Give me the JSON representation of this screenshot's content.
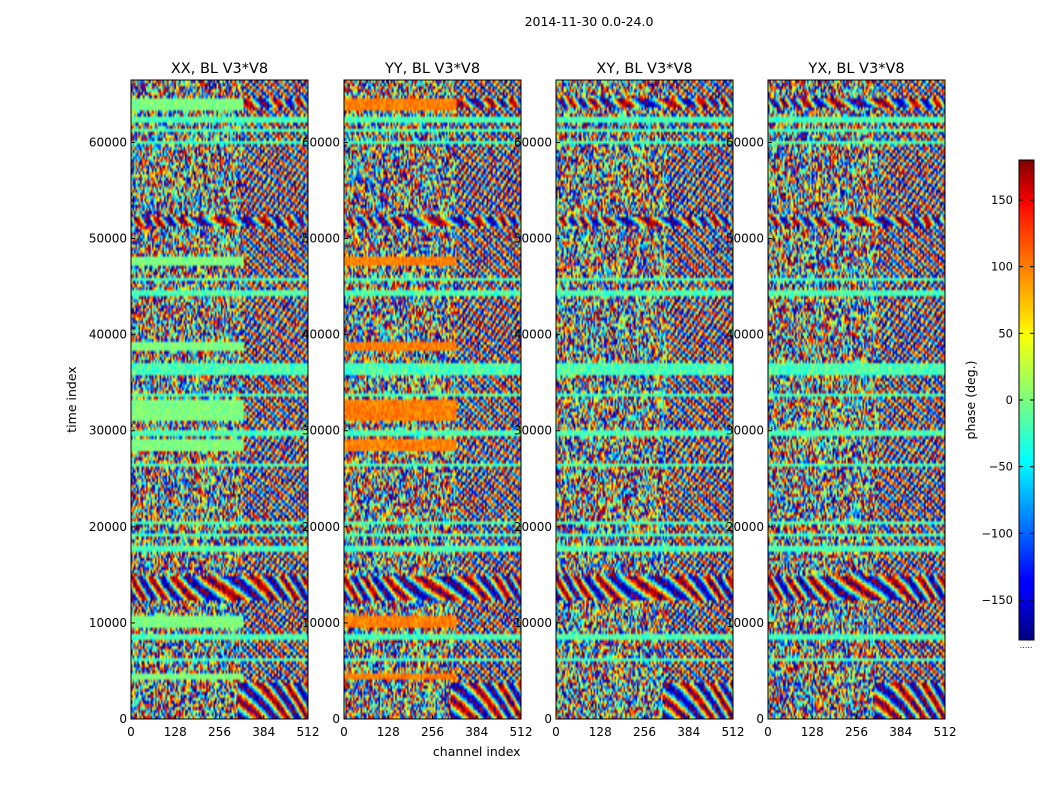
{
  "figure": {
    "suptitle": "2014-11-30 0.0-24.0",
    "footer_note": "....."
  },
  "chart_data": [
    {
      "type": "heatmap",
      "title": "XX, BL V3*V8",
      "xlabel": "",
      "ylabel": "time index",
      "xlim": [
        0,
        512
      ],
      "ylim": [
        0,
        66500
      ],
      "xticks": [
        0,
        128,
        256,
        384,
        512
      ],
      "yticks": [
        0,
        10000,
        20000,
        30000,
        40000,
        50000,
        60000
      ],
      "value_range": [
        -180,
        180
      ]
    },
    {
      "type": "heatmap",
      "title": "YY, BL V3*V8",
      "xlabel": "channel index",
      "ylabel": "",
      "xlim": [
        0,
        512
      ],
      "ylim": [
        0,
        66500
      ],
      "xticks": [
        0,
        128,
        256,
        384,
        512
      ],
      "yticks": [
        0,
        10000,
        20000,
        30000,
        40000,
        50000,
        60000
      ],
      "value_range": [
        -180,
        180
      ]
    },
    {
      "type": "heatmap",
      "title": "XY, BL V3*V8",
      "xlabel": "",
      "ylabel": "",
      "xlim": [
        0,
        512
      ],
      "ylim": [
        0,
        66500
      ],
      "xticks": [
        0,
        128,
        256,
        384,
        512
      ],
      "yticks": [
        0,
        10000,
        20000,
        30000,
        40000,
        50000,
        60000
      ],
      "value_range": [
        -180,
        180
      ]
    },
    {
      "type": "heatmap",
      "title": "YX, BL V3*V8",
      "xlabel": "",
      "ylabel": "",
      "xlim": [
        0,
        512
      ],
      "ylim": [
        0,
        66500
      ],
      "xticks": [
        0,
        128,
        256,
        384,
        512
      ],
      "yticks": [
        0,
        10000,
        20000,
        30000,
        40000,
        50000,
        60000
      ],
      "value_range": [
        -180,
        180
      ]
    }
  ],
  "colorbar": {
    "label": "phase (deg.)",
    "range": [
      -180,
      180
    ],
    "ticks": [
      -150,
      -100,
      -50,
      0,
      50,
      100,
      150
    ],
    "tick_labels": [
      "−150",
      "−100",
      "−50",
      "0",
      "50",
      "100",
      "150"
    ],
    "colormap": "jet"
  }
}
